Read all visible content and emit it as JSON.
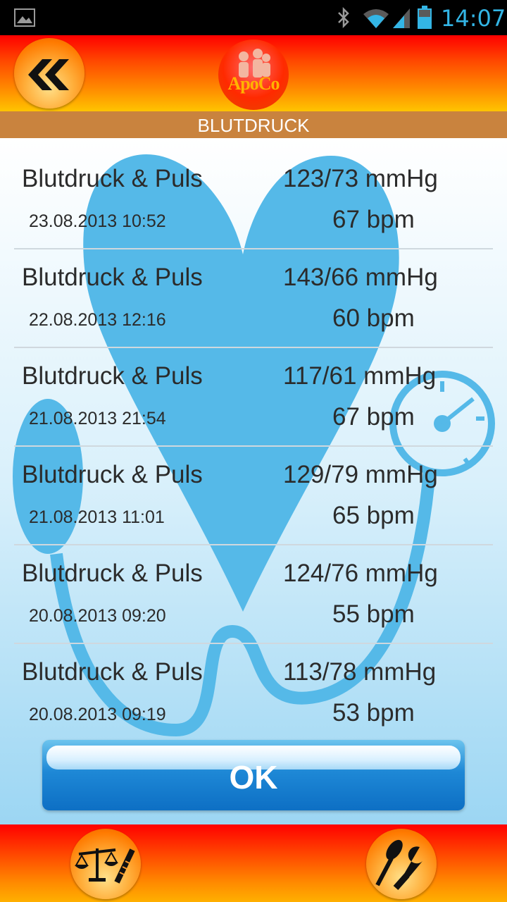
{
  "status_bar": {
    "time": "14:07"
  },
  "header": {
    "logo_text": "ApoCo"
  },
  "screen_title": "BLUTDRUCK",
  "entries": [
    {
      "type": "Blutdruck & Puls",
      "datetime": "23.08.2013 10:52",
      "bp": "123/73 mmHg",
      "pulse": "67 bpm"
    },
    {
      "type": "Blutdruck & Puls",
      "datetime": "22.08.2013 12:16",
      "bp": "143/66 mmHg",
      "pulse": "60 bpm"
    },
    {
      "type": "Blutdruck & Puls",
      "datetime": "21.08.2013 21:54",
      "bp": "117/61 mmHg",
      "pulse": "67 bpm"
    },
    {
      "type": "Blutdruck & Puls",
      "datetime": "21.08.2013 11:01",
      "bp": "129/79 mmHg",
      "pulse": "65 bpm"
    },
    {
      "type": "Blutdruck & Puls",
      "datetime": "20.08.2013 09:20",
      "bp": "124/76 mmHg",
      "pulse": "55 bpm"
    },
    {
      "type": "Blutdruck & Puls",
      "datetime": "20.08.2013 09:19",
      "bp": "113/78 mmHg",
      "pulse": "53 bpm"
    }
  ],
  "ok_button": {
    "label": "OK"
  },
  "colors": {
    "accent_blue": "#33b5e5",
    "title_bar": "#c9833e",
    "heart": "#55b9e8"
  },
  "icons": [
    "gallery-icon",
    "bluetooth-icon",
    "wifi-icon",
    "signal-icon",
    "battery-icon",
    "back-icon",
    "scale-icon",
    "tools-icon"
  ]
}
